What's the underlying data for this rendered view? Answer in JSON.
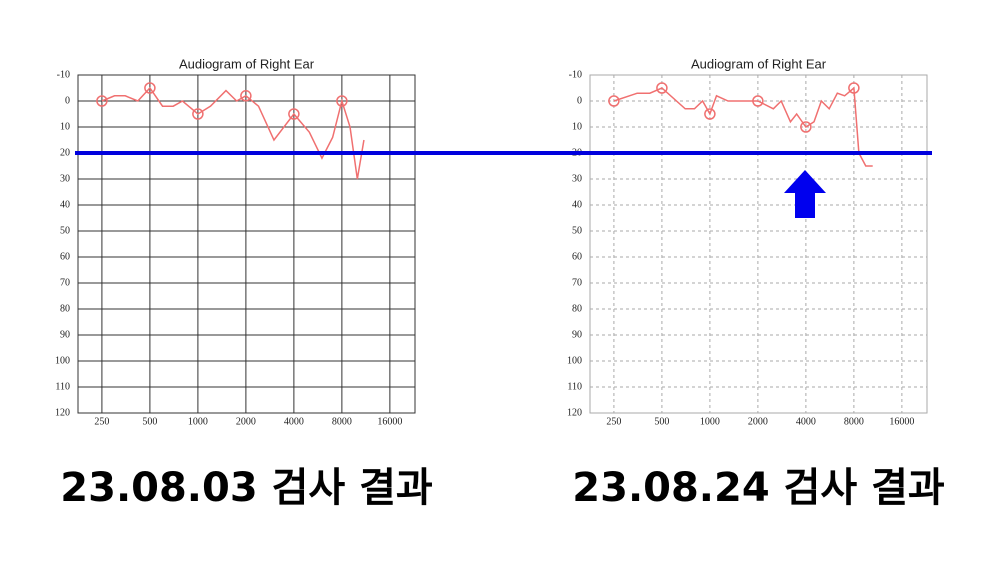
{
  "chart_data": [
    {
      "type": "line",
      "title": "Audiogram of Right Ear",
      "caption": "23.08.03 검사 결과",
      "log_x": true,
      "invert_y": true,
      "xlim": [
        177,
        23000
      ],
      "ylim": [
        -10,
        120
      ],
      "xticks": [
        250,
        500,
        1000,
        2000,
        4000,
        8000,
        16000
      ],
      "yticks": [
        -10,
        0,
        10,
        20,
        30,
        40,
        50,
        60,
        70,
        80,
        90,
        100,
        110,
        120
      ],
      "grid": true,
      "grid_color": "#333",
      "grid_dash": false,
      "series": [
        {
          "color": "#f07070",
          "marker": "none",
          "x": [
            250,
            300,
            350,
            420,
            500,
            600,
            700,
            800,
            1000,
            1200,
            1500,
            1750,
            2000,
            2400,
            3000,
            4000,
            5000,
            6000,
            7000,
            8000,
            9000,
            10000,
            11000
          ],
          "values": [
            0,
            -2,
            -2,
            0,
            -5,
            2,
            2,
            0,
            5,
            2,
            -4,
            0,
            -2,
            2,
            15,
            5,
            12,
            22,
            14,
            0,
            10,
            30,
            15
          ]
        },
        {
          "color": "#f07070",
          "marker": "circle",
          "x": [
            250,
            500,
            1000,
            2000,
            4000,
            8000
          ],
          "values": [
            0,
            -5,
            5,
            -2,
            5,
            0
          ]
        }
      ]
    },
    {
      "type": "line",
      "title": "Audiogram of Right Ear",
      "caption": "23.08.24 검사 결과",
      "log_x": true,
      "invert_y": true,
      "xlim": [
        177,
        23000
      ],
      "ylim": [
        -10,
        120
      ],
      "xticks": [
        250,
        500,
        1000,
        2000,
        4000,
        8000,
        16000
      ],
      "yticks": [
        -10,
        0,
        10,
        20,
        30,
        40,
        50,
        60,
        70,
        80,
        90,
        100,
        110,
        120
      ],
      "grid": true,
      "grid_color": "#aaa",
      "grid_dash": true,
      "series": [
        {
          "color": "#f07070",
          "marker": "none",
          "x": [
            250,
            350,
            420,
            500,
            700,
            800,
            900,
            1000,
            1100,
            1300,
            2000,
            2500,
            2800,
            3200,
            3500,
            4000,
            4500,
            5000,
            5600,
            6300,
            7000,
            8000,
            8600,
            9500,
            10500
          ],
          "values": [
            0,
            -3,
            -3,
            -5,
            3,
            3,
            0,
            5,
            -2,
            0,
            0,
            3,
            0,
            8,
            5,
            10,
            8,
            0,
            3,
            -3,
            -2,
            -5,
            20,
            25,
            25
          ]
        },
        {
          "color": "#f07070",
          "marker": "circle",
          "x": [
            250,
            500,
            1000,
            2000,
            4000,
            8000
          ],
          "values": [
            0,
            -5,
            5,
            0,
            10,
            -5
          ]
        }
      ]
    }
  ],
  "highlight_level": 20,
  "highlight_color": "#0000dd"
}
